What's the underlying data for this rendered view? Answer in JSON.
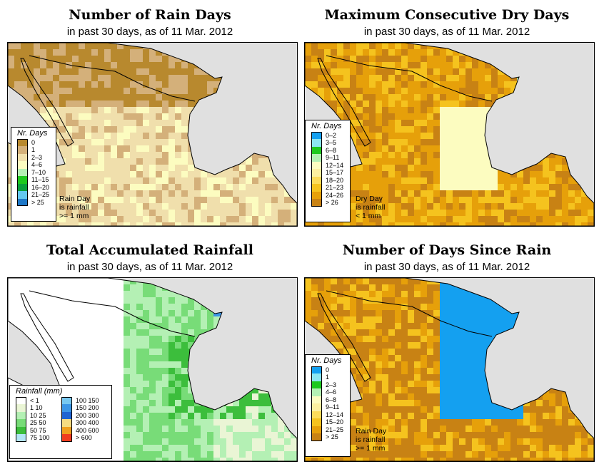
{
  "panels": [
    {
      "id": "rain-days",
      "title": "Number of Rain Days",
      "subtitle": "in past 30 days, as of  11 Mar. 2012",
      "legend": {
        "title": "Nr. Days",
        "items": [
          {
            "label": "0",
            "color": "#b8892e"
          },
          {
            "label": "1",
            "color": "#d4b07a"
          },
          {
            "label": "2–3",
            "color": "#f0dfac"
          },
          {
            "label": "4–6",
            "color": "#fcfcc0"
          },
          {
            "label": "7–10",
            "color": "#b4f0b4"
          },
          {
            "label": "11–15",
            "color": "#1ec81e"
          },
          {
            "label": "16–20",
            "color": "#0aa03c"
          },
          {
            "label": "21–25",
            "color": "#64c8f0"
          },
          {
            "label": "> 25",
            "color": "#1e78c8"
          }
        ]
      },
      "note": [
        "Rain Day",
        "is rainfall",
        ">= 1 mm"
      ],
      "palette": [
        "#b8892e",
        "#d4b07a",
        "#f0dfac",
        "#fcfcc0",
        "#b4f0b4",
        "#1ec81e"
      ]
    },
    {
      "id": "max-dry-days",
      "title": "Maximum Consecutive Dry Days",
      "subtitle": "in past 30 days, as of  11 Mar. 2012",
      "legend": {
        "title": "Nr. Days",
        "items": [
          {
            "label": "0–2",
            "color": "#14a0f0"
          },
          {
            "label": "3–5",
            "color": "#8ce6f0"
          },
          {
            "label": "6–8",
            "color": "#1ec81e"
          },
          {
            "label": "9–11",
            "color": "#b4f0b4"
          },
          {
            "label": "12–14",
            "color": "#fcfcc0"
          },
          {
            "label": "15–17",
            "color": "#fcf0a0"
          },
          {
            "label": "18–20",
            "color": "#fcdc5a"
          },
          {
            "label": "21–23",
            "color": "#f5c31e"
          },
          {
            "label": "24–26",
            "color": "#e6a00a"
          },
          {
            "label": "> 26",
            "color": "#c88214"
          }
        ]
      },
      "note": [
        "Dry Day",
        "is rainfall",
        "< 1 mm"
      ],
      "palette": [
        "#fcfcc0",
        "#fcf0a0",
        "#fcdc5a",
        "#f5c31e",
        "#e6a00a",
        "#c88214",
        "#b4f0b4",
        "#8ce6f0"
      ]
    },
    {
      "id": "total-rainfall",
      "title": "Total Accumulated Rainfall",
      "subtitle": "in past 30 days, as of  11 Mar. 2012",
      "legend": {
        "title": "Rainfall (mm)",
        "items_left": [
          {
            "label": "< 1",
            "color": "#ffffff"
          },
          {
            "label": "1   10",
            "color": "#eaf5d5"
          },
          {
            "label": "10   25",
            "color": "#b4f0b4"
          },
          {
            "label": "25   50",
            "color": "#78dc78"
          },
          {
            "label": "50   75",
            "color": "#3cbe3c"
          },
          {
            "label": "75   100",
            "color": "#b4e6f5"
          }
        ],
        "items_right": [
          {
            "label": "100  150",
            "color": "#78c8f0"
          },
          {
            "label": "150  200",
            "color": "#3c96e6"
          },
          {
            "label": "200  300",
            "color": "#1e64d2"
          },
          {
            "label": "300  400",
            "color": "#f5dc82"
          },
          {
            "label": "400  600",
            "color": "#f0a01e"
          },
          {
            "label": "> 600",
            "color": "#f03c1e"
          }
        ]
      },
      "palette": [
        "#ffffff",
        "#eaf5d5",
        "#b4f0b4",
        "#78dc78",
        "#3cbe3c",
        "#78c8f0",
        "#3c96e6"
      ]
    },
    {
      "id": "days-since-rain",
      "title": "Number of Days Since Rain",
      "subtitle": "in past 30 days, as of  11 Mar. 2012",
      "legend": {
        "title": "Nr. Days",
        "items": [
          {
            "label": "0",
            "color": "#14a0f0"
          },
          {
            "label": "1",
            "color": "#8ce6f0"
          },
          {
            "label": "2–3",
            "color": "#1ec81e"
          },
          {
            "label": "4–6",
            "color": "#b4f0b4"
          },
          {
            "label": "6–8",
            "color": "#fcfcc0"
          },
          {
            "label": "9–11",
            "color": "#fcf0a0"
          },
          {
            "label": "12–14",
            "color": "#fcdc5a"
          },
          {
            "label": "15–20",
            "color": "#f5c31e"
          },
          {
            "label": "21–25",
            "color": "#e6a00a"
          },
          {
            "label": "> 25",
            "color": "#c88214"
          }
        ]
      },
      "note": [
        "Rain Day",
        "is rainfall",
        ">= 1 mm"
      ],
      "palette": [
        "#c88214",
        "#e6a00a",
        "#f5c31e",
        "#14a0f0",
        "#8ce6f0",
        "#1ec81e"
      ]
    }
  ],
  "colors": {
    "ocean": "#e0e0e0",
    "border": "#000000"
  }
}
